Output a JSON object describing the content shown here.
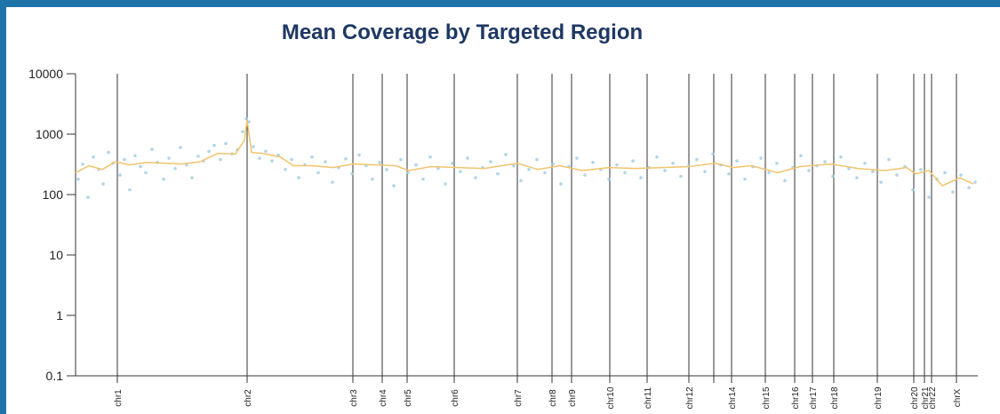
{
  "chart_data": {
    "type": "scatter",
    "title": "Mean Coverage by Targeted Region",
    "log_y": true,
    "xlim": [
      0,
      1015
    ],
    "ylim": [
      0.1,
      10000
    ],
    "yticks": [
      0.1,
      1,
      10,
      100,
      1000,
      10000
    ],
    "xticks": [
      {
        "value": 47,
        "label": "chr1"
      },
      {
        "value": 193,
        "label": "chr2"
      },
      {
        "value": 312,
        "label": "chr3"
      },
      {
        "value": 345,
        "label": "chr4"
      },
      {
        "value": 373,
        "label": "chr5"
      },
      {
        "value": 426,
        "label": "chr6"
      },
      {
        "value": 497,
        "label": "chr7"
      },
      {
        "value": 536,
        "label": "chr8"
      },
      {
        "value": 558,
        "label": "chr9"
      },
      {
        "value": 601,
        "label": "chr10"
      },
      {
        "value": 643,
        "label": "chr11"
      },
      {
        "value": 690,
        "label": "chr12"
      },
      {
        "value": 718,
        "label": null
      },
      {
        "value": 738,
        "label": "chr14"
      },
      {
        "value": 776,
        "label": "chr15"
      },
      {
        "value": 809,
        "label": "chr16"
      },
      {
        "value": 829,
        "label": "chr17"
      },
      {
        "value": 853,
        "label": "chr18"
      },
      {
        "value": 902,
        "label": "chr19"
      },
      {
        "value": 943,
        "label": "chr20"
      },
      {
        "value": 955,
        "label": "chr21"
      },
      {
        "value": 963,
        "label": "chr22"
      },
      {
        "value": 991,
        "label": "chrX"
      }
    ],
    "series": [
      {
        "type": "scatter",
        "color": "#9ecae1",
        "x": [
          3,
          8,
          14,
          20,
          26,
          31,
          37,
          42,
          50,
          55,
          61,
          67,
          73,
          79,
          86,
          92,
          99,
          105,
          112,
          118,
          125,
          131,
          138,
          144,
          150,
          156,
          163,
          169,
          176,
          182,
          188,
          192,
          195,
          200,
          207,
          214,
          221,
          228,
          236,
          243,
          251,
          258,
          266,
          273,
          281,
          289,
          296,
          304,
          311,
          319,
          327,
          334,
          342,
          350,
          358,
          366,
          374,
          383,
          391,
          399,
          408,
          416,
          424,
          433,
          441,
          450,
          458,
          467,
          475,
          484,
          493,
          501,
          510,
          519,
          528,
          537,
          546,
          555,
          564,
          573,
          582,
          591,
          600,
          609,
          618,
          627,
          636,
          645,
          654,
          663,
          672,
          681,
          690,
          699,
          708,
          717,
          726,
          735,
          744,
          753,
          762,
          771,
          780,
          789,
          798,
          807,
          816,
          825,
          834,
          843,
          852,
          861,
          870,
          879,
          888,
          897,
          906,
          915,
          924,
          933,
          942,
          951,
          960,
          969,
          978,
          987,
          996,
          1005,
          1012
        ],
        "values": [
          180,
          320,
          90,
          420,
          260,
          150,
          500,
          330,
          210,
          380,
          120,
          440,
          290,
          230,
          560,
          340,
          180,
          400,
          270,
          600,
          310,
          190,
          430,
          360,
          520,
          650,
          380,
          700,
          470,
          550,
          1100,
          1800,
          1600,
          620,
          400,
          520,
          360,
          450,
          260,
          380,
          190,
          310,
          420,
          230,
          350,
          160,
          280,
          390,
          220,
          450,
          300,
          180,
          340,
          260,
          140,
          380,
          230,
          310,
          180,
          420,
          270,
          150,
          330,
          240,
          400,
          190,
          280,
          350,
          220,
          460,
          300,
          170,
          260,
          380,
          230,
          320,
          150,
          290,
          400,
          210,
          340,
          260,
          180,
          310,
          230,
          360,
          190,
          280,
          420,
          250,
          330,
          200,
          300,
          380,
          240,
          470,
          310,
          220,
          360,
          180,
          290,
          400,
          230,
          330,
          170,
          280,
          440,
          250,
          300,
          350,
          200,
          420,
          270,
          190,
          330,
          240,
          160,
          380,
          210,
          290,
          120,
          260,
          90,
          180,
          230,
          110,
          210,
          130,
          160
        ]
      },
      {
        "type": "line",
        "color": "#f2c46d",
        "x": [
          0,
          15,
          30,
          45,
          60,
          80,
          100,
          120,
          140,
          160,
          180,
          190,
          193,
          198,
          210,
          230,
          245,
          265,
          290,
          312,
          340,
          360,
          375,
          400,
          430,
          460,
          497,
          520,
          545,
          570,
          600,
          630,
          660,
          690,
          720,
          740,
          760,
          790,
          815,
          850,
          880,
          910,
          935,
          945,
          960,
          975,
          995,
          1010
        ],
        "values": [
          230,
          300,
          260,
          350,
          310,
          340,
          330,
          320,
          350,
          480,
          470,
          800,
          1700,
          500,
          480,
          420,
          300,
          300,
          280,
          320,
          310,
          300,
          250,
          290,
          280,
          270,
          330,
          260,
          300,
          250,
          280,
          270,
          280,
          290,
          330,
          280,
          300,
          230,
          290,
          320,
          270,
          250,
          280,
          220,
          250,
          140,
          190,
          150
        ]
      }
    ]
  }
}
